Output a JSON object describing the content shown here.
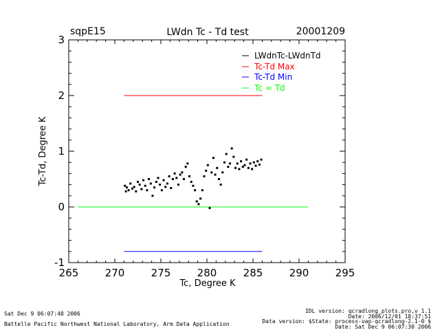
{
  "header": {
    "site": "sqpE15",
    "title": "LWdn Tc - Td test",
    "date": "20001209"
  },
  "chart_data": {
    "type": "scatter",
    "xlabel": "Tc, Degree K",
    "ylabel": "Tc-Td, Degree K",
    "xlim": [
      265,
      295
    ],
    "ylim": [
      -1,
      3
    ],
    "xticks": [
      "265",
      "270",
      "275",
      "280",
      "285",
      "290",
      "295"
    ],
    "yticks": [
      "-1",
      "0",
      "1",
      "2",
      "3"
    ],
    "legend_position": "top-right",
    "legend": [
      {
        "label": "LWdnTc-LWdnTd",
        "color": "#000000"
      },
      {
        "label": "Tc-Td Max",
        "color": "#ff0000"
      },
      {
        "label": "Tc-Td Min",
        "color": "#0000ff"
      },
      {
        "label": "Tc = Td",
        "color": "#00ff00"
      }
    ],
    "reference_lines": [
      {
        "name": "Tc-Td Max",
        "y": 2.0,
        "x": [
          271,
          286
        ],
        "color": "#ff0000"
      },
      {
        "name": "Tc-Td Min",
        "y": -0.8,
        "x": [
          271,
          286
        ],
        "color": "#0000ff"
      },
      {
        "name": "Tc = Td",
        "y": 0.0,
        "x": [
          266,
          291
        ],
        "color": "#00ff00"
      }
    ],
    "series": [
      {
        "color": "#000000",
        "points": [
          [
            271.1,
            0.38
          ],
          [
            271.2,
            0.28
          ],
          [
            271.3,
            0.35
          ],
          [
            271.5,
            0.3
          ],
          [
            271.7,
            0.42
          ],
          [
            271.9,
            0.33
          ],
          [
            272.1,
            0.36
          ],
          [
            272.3,
            0.28
          ],
          [
            272.5,
            0.45
          ],
          [
            272.7,
            0.4
          ],
          [
            272.9,
            0.32
          ],
          [
            273.1,
            0.48
          ],
          [
            273.3,
            0.38
          ],
          [
            273.5,
            0.3
          ],
          [
            273.7,
            0.5
          ],
          [
            273.9,
            0.42
          ],
          [
            274.1,
            0.2
          ],
          [
            274.3,
            0.35
          ],
          [
            274.5,
            0.45
          ],
          [
            274.7,
            0.52
          ],
          [
            274.9,
            0.4
          ],
          [
            275.1,
            0.3
          ],
          [
            275.3,
            0.48
          ],
          [
            275.5,
            0.36
          ],
          [
            275.7,
            0.42
          ],
          [
            275.9,
            0.55
          ],
          [
            276.1,
            0.34
          ],
          [
            276.3,
            0.5
          ],
          [
            276.5,
            0.6
          ],
          [
            276.7,
            0.52
          ],
          [
            276.9,
            0.4
          ],
          [
            277.1,
            0.58
          ],
          [
            277.3,
            0.62
          ],
          [
            277.5,
            0.5
          ],
          [
            277.7,
            0.72
          ],
          [
            277.9,
            0.78
          ],
          [
            278.1,
            0.55
          ],
          [
            278.3,
            0.45
          ],
          [
            278.5,
            0.38
          ],
          [
            278.7,
            0.3
          ],
          [
            278.9,
            0.1
          ],
          [
            279.1,
            0.05
          ],
          [
            279.3,
            0.15
          ],
          [
            279.5,
            0.3
          ],
          [
            279.7,
            0.55
          ],
          [
            279.9,
            0.65
          ],
          [
            280.1,
            0.75
          ],
          [
            280.3,
            -0.02
          ],
          [
            280.5,
            0.62
          ],
          [
            280.7,
            0.88
          ],
          [
            280.9,
            0.58
          ],
          [
            281.1,
            0.7
          ],
          [
            281.3,
            0.5
          ],
          [
            281.5,
            0.4
          ],
          [
            281.7,
            0.62
          ],
          [
            281.9,
            0.8
          ],
          [
            282.1,
            0.95
          ],
          [
            282.3,
            0.72
          ],
          [
            282.5,
            0.78
          ],
          [
            282.7,
            1.05
          ],
          [
            282.9,
            0.9
          ],
          [
            283.1,
            0.7
          ],
          [
            283.3,
            0.78
          ],
          [
            283.5,
            0.68
          ],
          [
            283.7,
            0.82
          ],
          [
            283.9,
            0.72
          ],
          [
            284.1,
            0.75
          ],
          [
            284.3,
            0.85
          ],
          [
            284.5,
            0.7
          ],
          [
            284.7,
            0.78
          ],
          [
            284.9,
            0.68
          ],
          [
            285.1,
            0.8
          ],
          [
            285.3,
            0.74
          ],
          [
            285.5,
            0.82
          ],
          [
            285.7,
            0.76
          ],
          [
            285.9,
            0.85
          ]
        ]
      }
    ]
  },
  "footer": {
    "timestamp": "Sat Dec  9 06:07:48 2006",
    "institution": "Battelle Pacific Northwest National Laboratory, Arm Data Application",
    "idl_version": "IDL version: qcradlong_plots.pro,v 1.1",
    "plot_date": "Date: 2006/12/01 18:37:51",
    "data_version": "Data version: $State: process-vap-qcradlong-2.1-0 $",
    "data_date": "Date: Sat Dec  9 06:07:30 2006"
  }
}
